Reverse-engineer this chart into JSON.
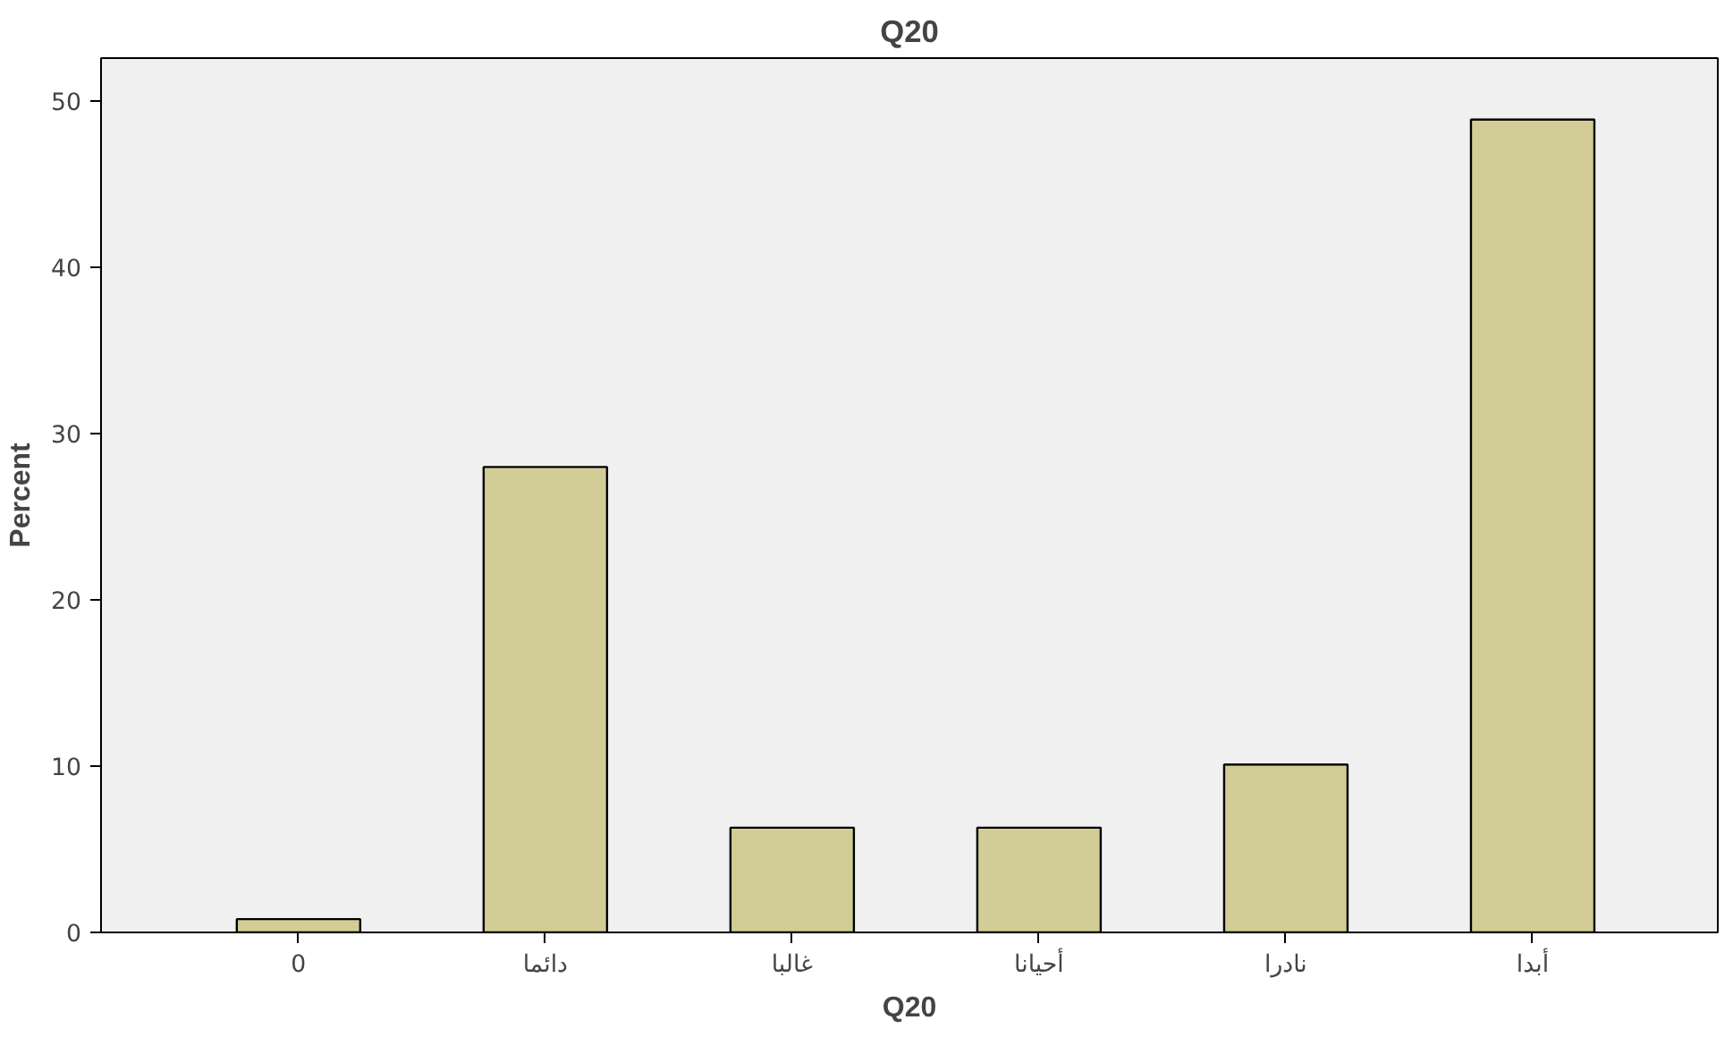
{
  "chart_data": {
    "type": "bar",
    "title": "Q20",
    "xlabel": "Q20",
    "ylabel": "Percent",
    "categories": [
      "0",
      "دائما",
      "غالبا",
      "أحيانا",
      "نادرا",
      "أبدا"
    ],
    "values": [
      0.8,
      28.0,
      6.3,
      6.3,
      10.1,
      48.9
    ],
    "color": "#d2cd96",
    "ylim": [
      0,
      52.6
    ],
    "yticks": [
      0,
      10,
      20,
      30,
      40,
      50
    ],
    "grid": false
  }
}
